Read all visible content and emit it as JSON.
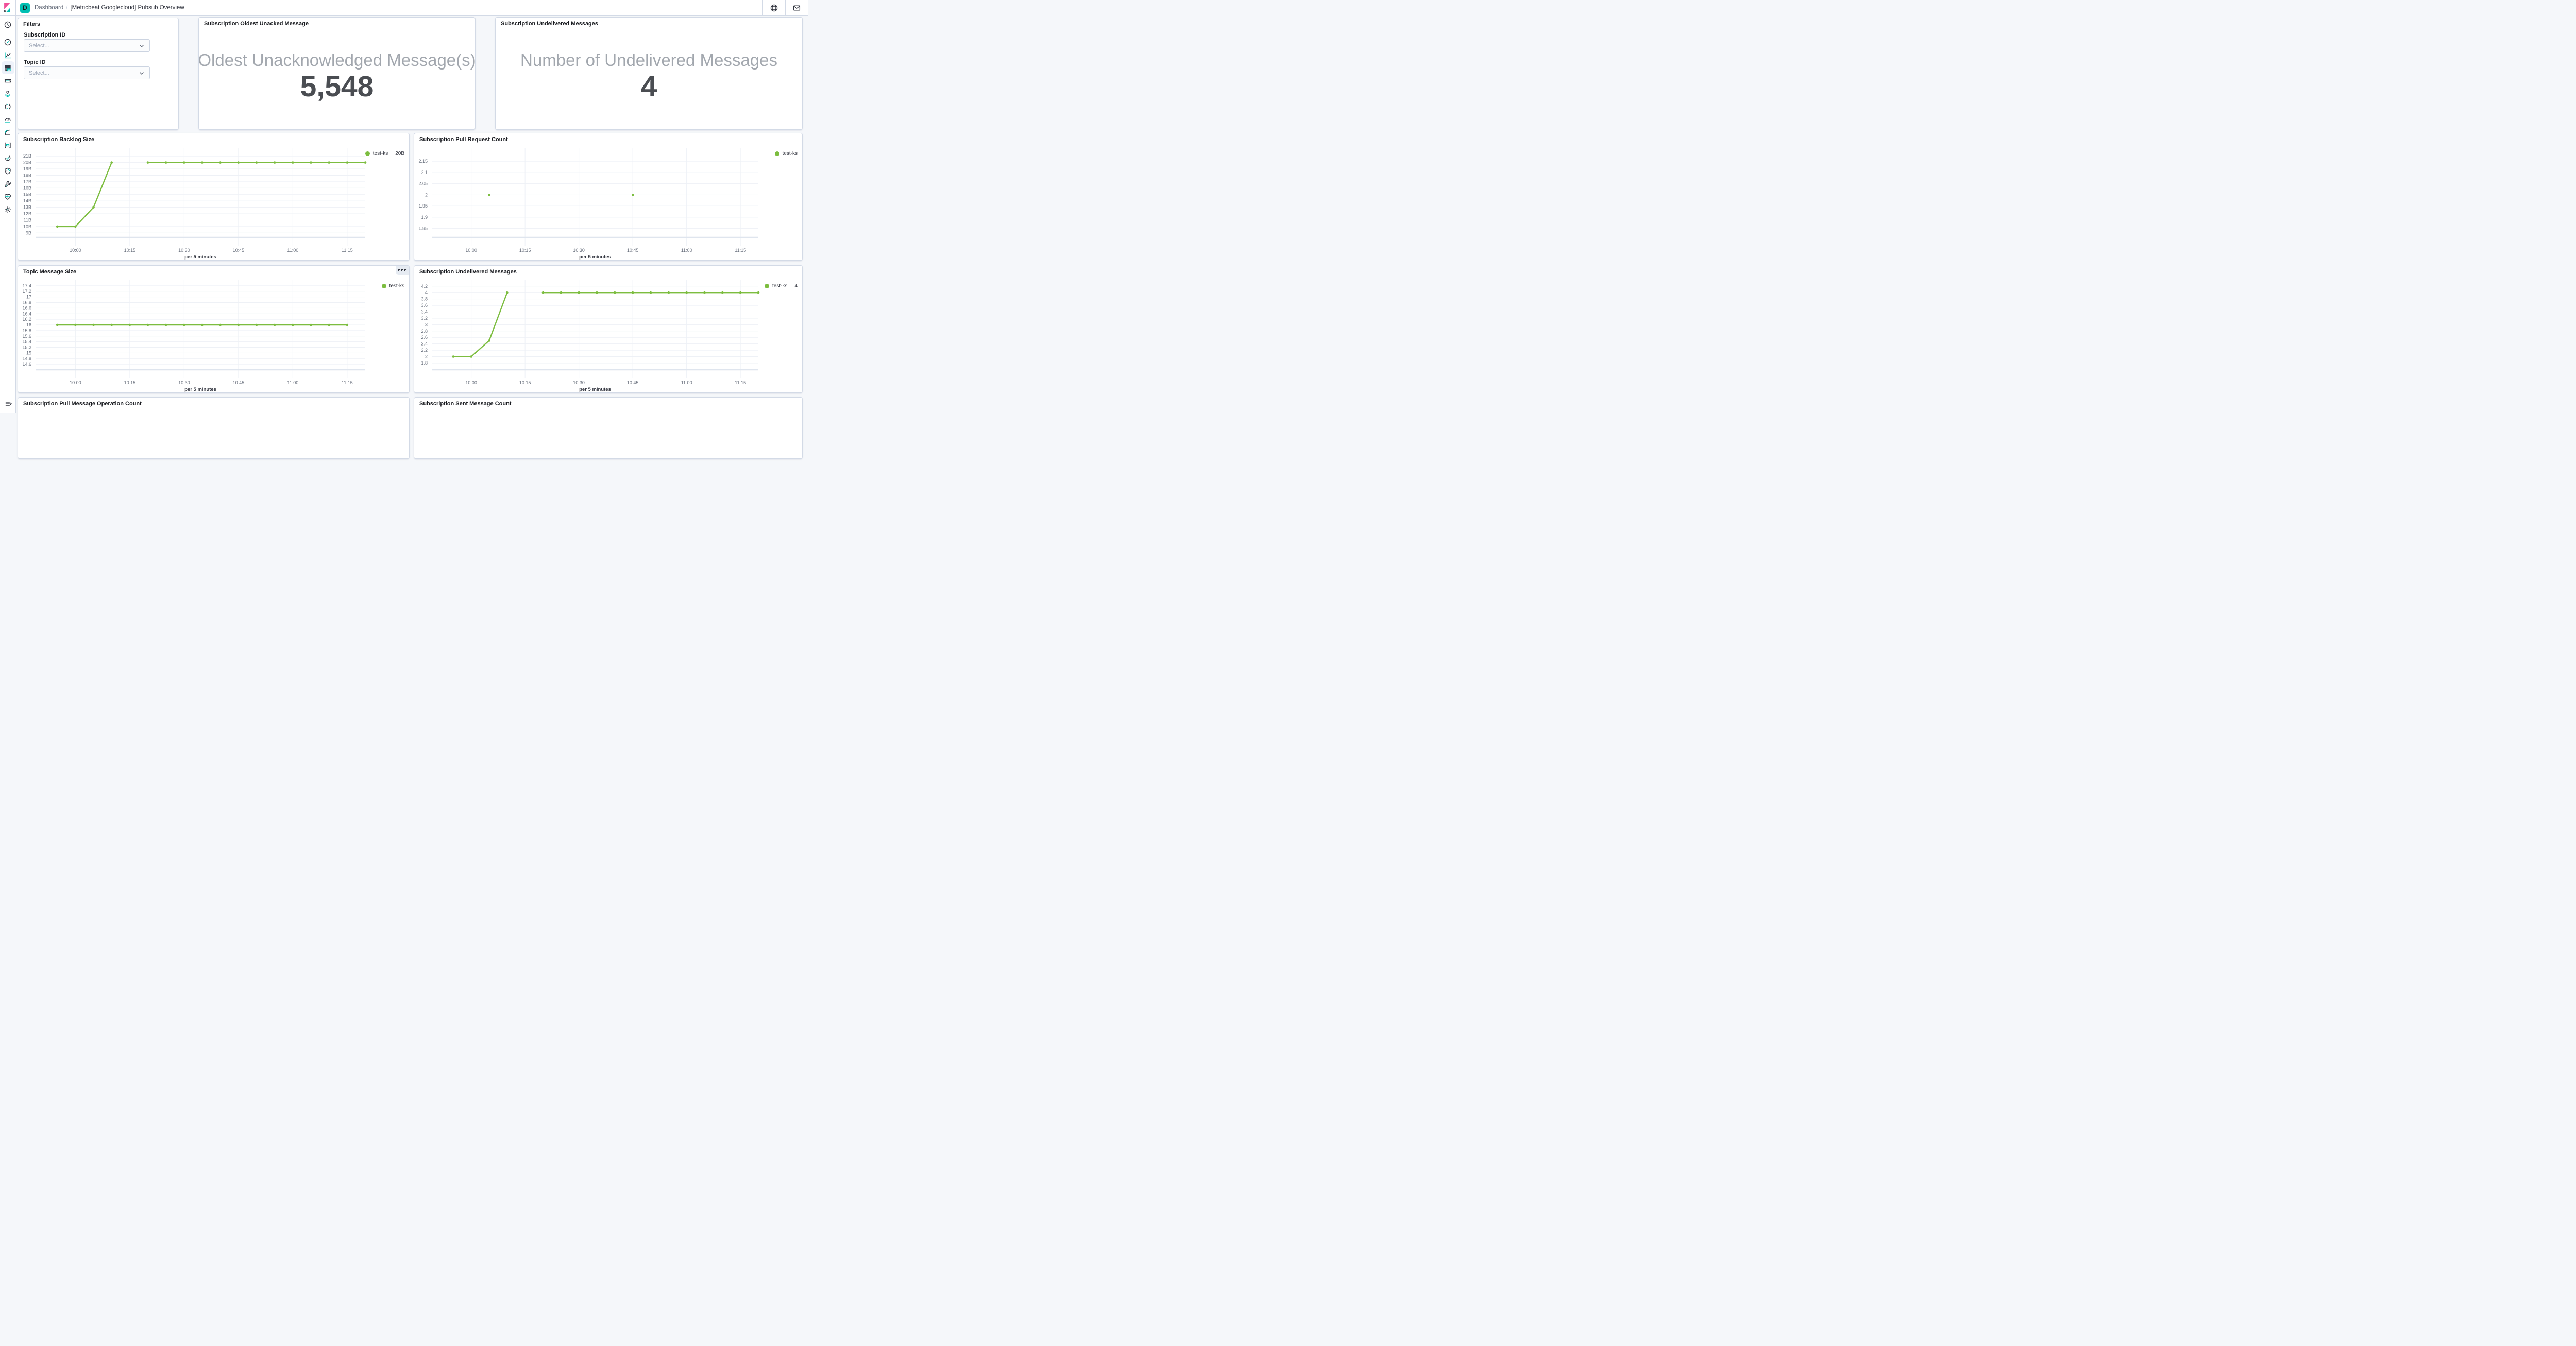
{
  "topbar": {
    "space_initial": "D",
    "breadcrumbs": {
      "section": "Dashboard",
      "separator": "/",
      "page": "[Metricbeat Googlecloud] Pubsub Overview"
    },
    "icons": [
      "help-icon",
      "newsfeed-icon"
    ]
  },
  "sidebar": {
    "items": [
      {
        "name": "recently-viewed",
        "icon": "clock-icon"
      },
      {
        "name": "discover",
        "icon": "discover-compass-icon"
      },
      {
        "name": "visualize",
        "icon": "visualize-chart-icon"
      },
      {
        "name": "dashboard",
        "icon": "dashboard-icon",
        "active": true
      },
      {
        "name": "canvas",
        "icon": "canvas-ticket-icon"
      },
      {
        "name": "maps",
        "icon": "maps-pin-icon"
      },
      {
        "name": "machine-learning",
        "icon": "machine-learning-icon"
      },
      {
        "name": "metrics",
        "icon": "metrics-gauge-icon"
      },
      {
        "name": "logs",
        "icon": "logs-icon"
      },
      {
        "name": "apm",
        "icon": "apm-icon"
      },
      {
        "name": "uptime",
        "icon": "uptime-icon"
      },
      {
        "name": "siem",
        "icon": "siem-shield-icon"
      },
      {
        "name": "dev-tools",
        "icon": "dev-tools-wrench-icon"
      },
      {
        "name": "stack-monitoring",
        "icon": "stack-monitoring-heart-icon"
      },
      {
        "name": "management",
        "icon": "management-gear-icon"
      }
    ],
    "collapse_icon": "menu-expand-icon"
  },
  "filters_panel": {
    "title": "Filters",
    "subscription_label": "Subscription ID",
    "topic_label": "Topic ID",
    "select_placeholder": "Select..."
  },
  "metric_panels": [
    {
      "title": "Subscription Oldest Unacked Message",
      "label": "Oldest Unacknowledged Message(s)",
      "value": "5,548"
    },
    {
      "title": "Subscription Undelivered Messages",
      "label": "Number of Undelivered Messages",
      "value": "4"
    }
  ],
  "bottom_panels": [
    {
      "title": "Subscription Pull Message Operation Count"
    },
    {
      "title": "Subscription Sent Message Count"
    }
  ],
  "colors": {
    "brand_pink": "#f04e98",
    "brand_teal": "#00bfb3",
    "brand_dark": "#343741",
    "series_green": "#7cbd3f",
    "panel_border": "#d3dae6",
    "page_background": "#f5f7fa",
    "metric_label_gray": "#a2a7ae",
    "metric_value_gray": "#4a4d52"
  },
  "chart_data": [
    {
      "type": "line",
      "title": "Subscription Backlog Size",
      "xlabel": "per 5 minutes",
      "grid": true,
      "legend_position": "right",
      "y_unit": "B (billions of bytes)",
      "xlim": [
        "09:49",
        "11:20"
      ],
      "ylim": [
        8.3,
        22.3
      ],
      "xticks": [
        {
          "t": "10:00",
          "label": "10:00"
        },
        {
          "t": "10:15",
          "label": "10:15"
        },
        {
          "t": "10:30",
          "label": "10:30"
        },
        {
          "t": "10:45",
          "label": "10:45"
        },
        {
          "t": "11:00",
          "label": "11:00"
        },
        {
          "t": "11:15",
          "label": "11:15"
        }
      ],
      "yticks": [
        {
          "v": 21,
          "label": "21B"
        },
        {
          "v": 20,
          "label": "20B"
        },
        {
          "v": 19,
          "label": "19B"
        },
        {
          "v": 18,
          "label": "18B"
        },
        {
          "v": 17,
          "label": "17B"
        },
        {
          "v": 16,
          "label": "16B"
        },
        {
          "v": 15,
          "label": "15B"
        },
        {
          "v": 14,
          "label": "14B"
        },
        {
          "v": 13,
          "label": "13B"
        },
        {
          "v": 12,
          "label": "12B"
        },
        {
          "v": 11,
          "label": "11B"
        },
        {
          "v": 10,
          "label": "10B"
        },
        {
          "v": 9,
          "label": "9B"
        }
      ],
      "legend": [
        {
          "name": "test-ks",
          "value": "20B"
        }
      ],
      "series": [
        {
          "name": "test-ks",
          "color": "#7cbd3f",
          "segments": [
            [
              [
                "09:55",
                10
              ],
              [
                "10:00",
                10
              ],
              [
                "10:05",
                13
              ],
              [
                "10:10",
                20
              ]
            ],
            [
              [
                "10:20",
                20
              ],
              [
                "10:25",
                20
              ],
              [
                "10:30",
                20
              ],
              [
                "10:35",
                20
              ],
              [
                "10:40",
                20
              ],
              [
                "10:45",
                20
              ],
              [
                "10:50",
                20
              ],
              [
                "10:55",
                20
              ],
              [
                "11:00",
                20
              ],
              [
                "11:05",
                20
              ],
              [
                "11:10",
                20
              ],
              [
                "11:15",
                20
              ],
              [
                "11:20",
                20
              ]
            ]
          ]
        }
      ]
    },
    {
      "type": "line",
      "title": "Subscription Pull Request Count",
      "xlabel": "per 5 minutes",
      "grid": true,
      "legend_position": "right",
      "y_unit": "count",
      "xlim": [
        "09:49",
        "11:20"
      ],
      "ylim": [
        1.81,
        2.21
      ],
      "xticks": [
        {
          "t": "10:00",
          "label": "10:00"
        },
        {
          "t": "10:15",
          "label": "10:15"
        },
        {
          "t": "10:30",
          "label": "10:30"
        },
        {
          "t": "10:45",
          "label": "10:45"
        },
        {
          "t": "11:00",
          "label": "11:00"
        },
        {
          "t": "11:15",
          "label": "11:15"
        }
      ],
      "yticks": [
        {
          "v": 2.15,
          "label": "2.15"
        },
        {
          "v": 2.1,
          "label": "2.1"
        },
        {
          "v": 2.05,
          "label": "2.05"
        },
        {
          "v": 2,
          "label": "2"
        },
        {
          "v": 1.95,
          "label": "1.95"
        },
        {
          "v": 1.9,
          "label": "1.9"
        },
        {
          "v": 1.85,
          "label": "1.85"
        }
      ],
      "legend": [
        {
          "name": "test-ks"
        }
      ],
      "series": [
        {
          "name": "test-ks",
          "color": "#7cbd3f",
          "segments": [
            [
              [
                "10:05",
                2
              ]
            ],
            [
              [
                "10:45",
                2
              ]
            ]
          ]
        }
      ]
    },
    {
      "type": "line",
      "title": "Topic Message Size",
      "xlabel": "per 5 minutes",
      "grid": true,
      "legend_position": "right",
      "y_unit": "bytes",
      "xlim": [
        "09:49",
        "11:20"
      ],
      "ylim": [
        14.4,
        17.6
      ],
      "xticks": [
        {
          "t": "10:00",
          "label": "10:00"
        },
        {
          "t": "10:15",
          "label": "10:15"
        },
        {
          "t": "10:30",
          "label": "10:30"
        },
        {
          "t": "10:45",
          "label": "10:45"
        },
        {
          "t": "11:00",
          "label": "11:00"
        },
        {
          "t": "11:15",
          "label": "11:15"
        }
      ],
      "yticks": [
        {
          "v": 17.4,
          "label": "17.4"
        },
        {
          "v": 17.2,
          "label": "17.2"
        },
        {
          "v": 17,
          "label": "17"
        },
        {
          "v": 16.8,
          "label": "16.8"
        },
        {
          "v": 16.6,
          "label": "16.6"
        },
        {
          "v": 16.4,
          "label": "16.4"
        },
        {
          "v": 16.2,
          "label": "16.2"
        },
        {
          "v": 16,
          "label": "16"
        },
        {
          "v": 15.8,
          "label": "15.8"
        },
        {
          "v": 15.6,
          "label": "15.6"
        },
        {
          "v": 15.4,
          "label": "15.4"
        },
        {
          "v": 15.2,
          "label": "15.2"
        },
        {
          "v": 15,
          "label": "15"
        },
        {
          "v": 14.8,
          "label": "14.8"
        },
        {
          "v": 14.6,
          "label": "14.6"
        }
      ],
      "legend": [
        {
          "name": "test-ks"
        }
      ],
      "series": [
        {
          "name": "test-ks",
          "color": "#7cbd3f",
          "segments": [
            [
              [
                "09:55",
                16
              ],
              [
                "10:00",
                16
              ],
              [
                "10:05",
                16
              ],
              [
                "10:10",
                16
              ],
              [
                "10:15",
                16
              ],
              [
                "10:20",
                16
              ],
              [
                "10:25",
                16
              ],
              [
                "10:30",
                16
              ],
              [
                "10:35",
                16
              ],
              [
                "10:40",
                16
              ],
              [
                "10:45",
                16
              ],
              [
                "10:50",
                16
              ],
              [
                "10:55",
                16
              ],
              [
                "11:00",
                16
              ],
              [
                "11:05",
                16
              ],
              [
                "11:10",
                16
              ],
              [
                "11:15",
                16
              ]
            ]
          ]
        }
      ]
    },
    {
      "type": "line",
      "title": "Subscription Undelivered Messages",
      "xlabel": "per 5 minutes",
      "grid": true,
      "legend_position": "right",
      "y_unit": "count",
      "xlim": [
        "09:49",
        "11:20"
      ],
      "ylim": [
        1.59,
        4.39
      ],
      "xticks": [
        {
          "t": "10:00",
          "label": "10:00"
        },
        {
          "t": "10:15",
          "label": "10:15"
        },
        {
          "t": "10:30",
          "label": "10:30"
        },
        {
          "t": "10:45",
          "label": "10:45"
        },
        {
          "t": "11:00",
          "label": "11:00"
        },
        {
          "t": "11:15",
          "label": "11:15"
        }
      ],
      "yticks": [
        {
          "v": 4.2,
          "label": "4.2"
        },
        {
          "v": 4,
          "label": "4"
        },
        {
          "v": 3.8,
          "label": "3.8"
        },
        {
          "v": 3.6,
          "label": "3.6"
        },
        {
          "v": 3.4,
          "label": "3.4"
        },
        {
          "v": 3.2,
          "label": "3.2"
        },
        {
          "v": 3,
          "label": "3"
        },
        {
          "v": 2.8,
          "label": "2.8"
        },
        {
          "v": 2.6,
          "label": "2.6"
        },
        {
          "v": 2.4,
          "label": "2.4"
        },
        {
          "v": 2.2,
          "label": "2.2"
        },
        {
          "v": 2,
          "label": "2"
        },
        {
          "v": 1.8,
          "label": "1.8"
        }
      ],
      "legend": [
        {
          "name": "test-ks",
          "value": "4"
        }
      ],
      "series": [
        {
          "name": "test-ks",
          "color": "#7cbd3f",
          "segments": [
            [
              [
                "09:55",
                2
              ],
              [
                "10:00",
                2
              ],
              [
                "10:05",
                2.5
              ],
              [
                "10:10",
                4
              ]
            ],
            [
              [
                "10:20",
                4
              ],
              [
                "10:25",
                4
              ],
              [
                "10:30",
                4
              ],
              [
                "10:35",
                4
              ],
              [
                "10:40",
                4
              ],
              [
                "10:45",
                4
              ],
              [
                "10:50",
                4
              ],
              [
                "10:55",
                4
              ],
              [
                "11:00",
                4
              ],
              [
                "11:05",
                4
              ],
              [
                "11:10",
                4
              ],
              [
                "11:15",
                4
              ],
              [
                "11:20",
                4
              ]
            ]
          ]
        }
      ]
    }
  ]
}
